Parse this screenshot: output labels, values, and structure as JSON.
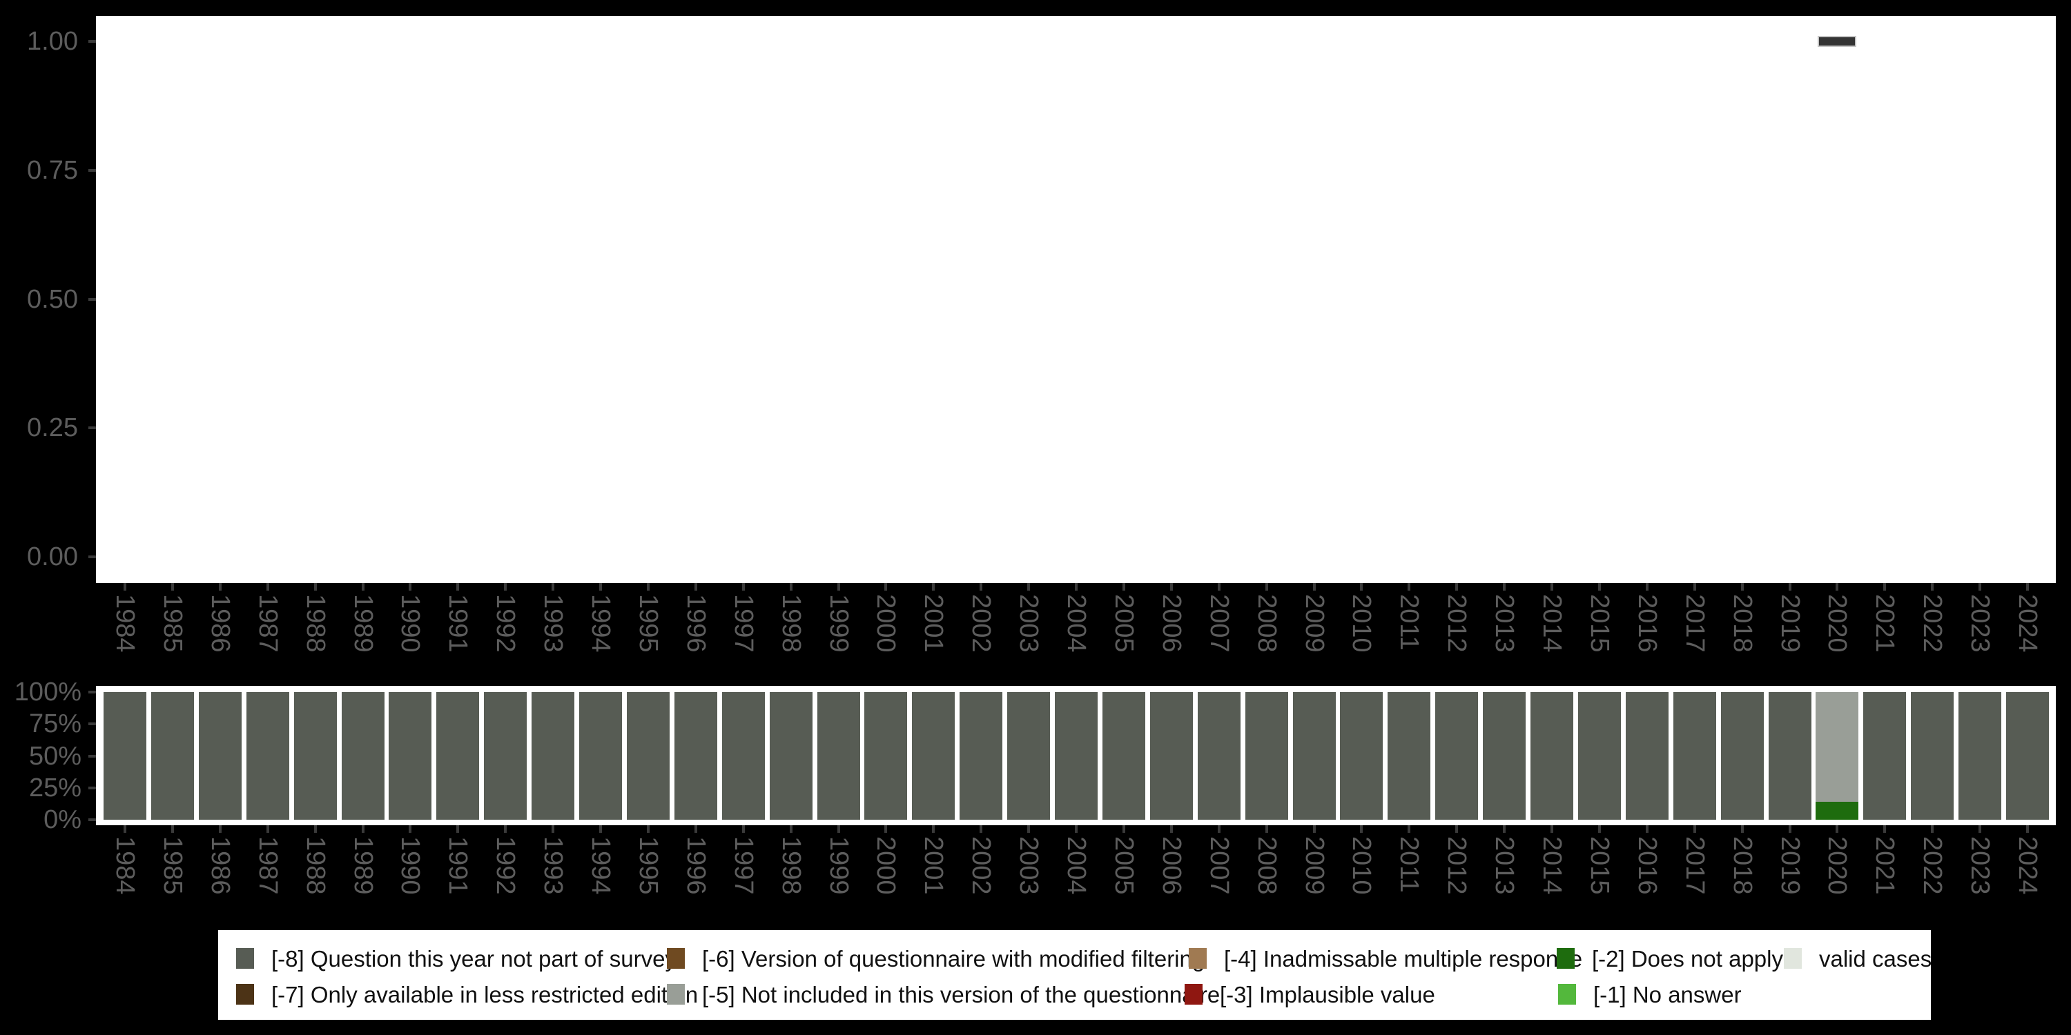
{
  "background": "#000000",
  "years": [
    "1984",
    "1985",
    "1986",
    "1987",
    "1988",
    "1989",
    "1990",
    "1991",
    "1992",
    "1993",
    "1994",
    "1995",
    "1996",
    "1997",
    "1998",
    "1999",
    "2000",
    "2001",
    "2002",
    "2003",
    "2004",
    "2005",
    "2006",
    "2007",
    "2008",
    "2009",
    "2010",
    "2011",
    "2012",
    "2013",
    "2014",
    "2015",
    "2016",
    "2017",
    "2018",
    "2019",
    "2020",
    "2021",
    "2022",
    "2023",
    "2024"
  ],
  "top_chart": {
    "y_tick_labels": [
      "1.00",
      "0.75",
      "0.50",
      "0.25",
      "0.00"
    ],
    "y_tick_values": [
      1.0,
      0.75,
      0.5,
      0.25,
      0.0
    ],
    "point": {
      "year": "2020",
      "value": 1.0
    },
    "point_color": "#343434"
  },
  "bottom_chart": {
    "y_tick_labels": [
      "100%",
      "75%",
      "50%",
      "25%",
      "0%"
    ],
    "y_tick_values": [
      100,
      75,
      50,
      25,
      0
    ],
    "bar_color_default": "#575c54"
  },
  "legend": {
    "rows": [
      [
        {
          "label": "[-8] Question this year not part of survey",
          "color": "#575c54"
        },
        {
          "label": "[-6] Version of questionnaire with modified filtering",
          "color": "#6f4a21"
        },
        {
          "label": "[-4] Inadmissable multiple response",
          "color": "#a07a52"
        },
        {
          "label": "[-2] Does not apply",
          "color": "#1e6c0e"
        },
        {
          "label": "valid cases",
          "color": "#e1e6de"
        }
      ],
      [
        {
          "label": "[-7] Only available in less restricted edition",
          "color": "#4c3316"
        },
        {
          "label": "[-5] Not included in this version of the questionnaire",
          "color": "#999e97"
        },
        {
          "label": "[-3] Implausible value",
          "color": "#8f1711"
        },
        {
          "label": "[-1] No answer",
          "color": "#53b83c"
        }
      ]
    ]
  },
  "chart_data": [
    {
      "type": "scatter",
      "title": "",
      "xlabel": "",
      "ylabel": "",
      "x_categories": [
        "1984",
        "1985",
        "1986",
        "1987",
        "1988",
        "1989",
        "1990",
        "1991",
        "1992",
        "1993",
        "1994",
        "1995",
        "1996",
        "1997",
        "1998",
        "1999",
        "2000",
        "2001",
        "2002",
        "2003",
        "2004",
        "2005",
        "2006",
        "2007",
        "2008",
        "2009",
        "2010",
        "2011",
        "2012",
        "2013",
        "2014",
        "2015",
        "2016",
        "2017",
        "2018",
        "2019",
        "2020",
        "2021",
        "2022",
        "2023",
        "2024"
      ],
      "points": [
        {
          "x": "2020",
          "y": 1.0
        }
      ],
      "marker": "horizontal-dash",
      "ylim": [
        0,
        1
      ],
      "yticks": [
        0,
        0.25,
        0.5,
        0.75,
        1.0
      ],
      "grid": false,
      "plot_background": "#ffffff"
    },
    {
      "type": "bar",
      "stacked": true,
      "stack_order": "bottom_to_top",
      "title": "",
      "xlabel": "",
      "ylabel": "",
      "unit": "percent",
      "categories": [
        "1984",
        "1985",
        "1986",
        "1987",
        "1988",
        "1989",
        "1990",
        "1991",
        "1992",
        "1993",
        "1994",
        "1995",
        "1996",
        "1997",
        "1998",
        "1999",
        "2000",
        "2001",
        "2002",
        "2003",
        "2004",
        "2005",
        "2006",
        "2007",
        "2008",
        "2009",
        "2010",
        "2011",
        "2012",
        "2013",
        "2014",
        "2015",
        "2016",
        "2017",
        "2018",
        "2019",
        "2020",
        "2021",
        "2022",
        "2023",
        "2024"
      ],
      "series": [
        {
          "name": "[-8] Question this year not part of survey",
          "color": "#575c54",
          "values": [
            100,
            100,
            100,
            100,
            100,
            100,
            100,
            100,
            100,
            100,
            100,
            100,
            100,
            100,
            100,
            100,
            100,
            100,
            100,
            100,
            100,
            100,
            100,
            100,
            100,
            100,
            100,
            100,
            100,
            100,
            100,
            100,
            100,
            100,
            100,
            100,
            0,
            100,
            100,
            100,
            100
          ]
        },
        {
          "name": "[-2] Does not apply",
          "color": "#1e6c0e",
          "values": [
            0,
            0,
            0,
            0,
            0,
            0,
            0,
            0,
            0,
            0,
            0,
            0,
            0,
            0,
            0,
            0,
            0,
            0,
            0,
            0,
            0,
            0,
            0,
            0,
            0,
            0,
            0,
            0,
            0,
            0,
            0,
            0,
            0,
            0,
            0,
            0,
            14,
            0,
            0,
            0,
            0
          ]
        },
        {
          "name": "[-5] Not included in this version of the questionnaire",
          "color": "#999e97",
          "values": [
            0,
            0,
            0,
            0,
            0,
            0,
            0,
            0,
            0,
            0,
            0,
            0,
            0,
            0,
            0,
            0,
            0,
            0,
            0,
            0,
            0,
            0,
            0,
            0,
            0,
            0,
            0,
            0,
            0,
            0,
            0,
            0,
            0,
            0,
            0,
            0,
            86,
            0,
            0,
            0,
            0
          ]
        }
      ],
      "ylim": [
        0,
        100
      ],
      "yticks_percent": [
        0,
        25,
        50,
        75,
        100
      ],
      "grid": false,
      "plot_background": "#ffffff"
    }
  ]
}
